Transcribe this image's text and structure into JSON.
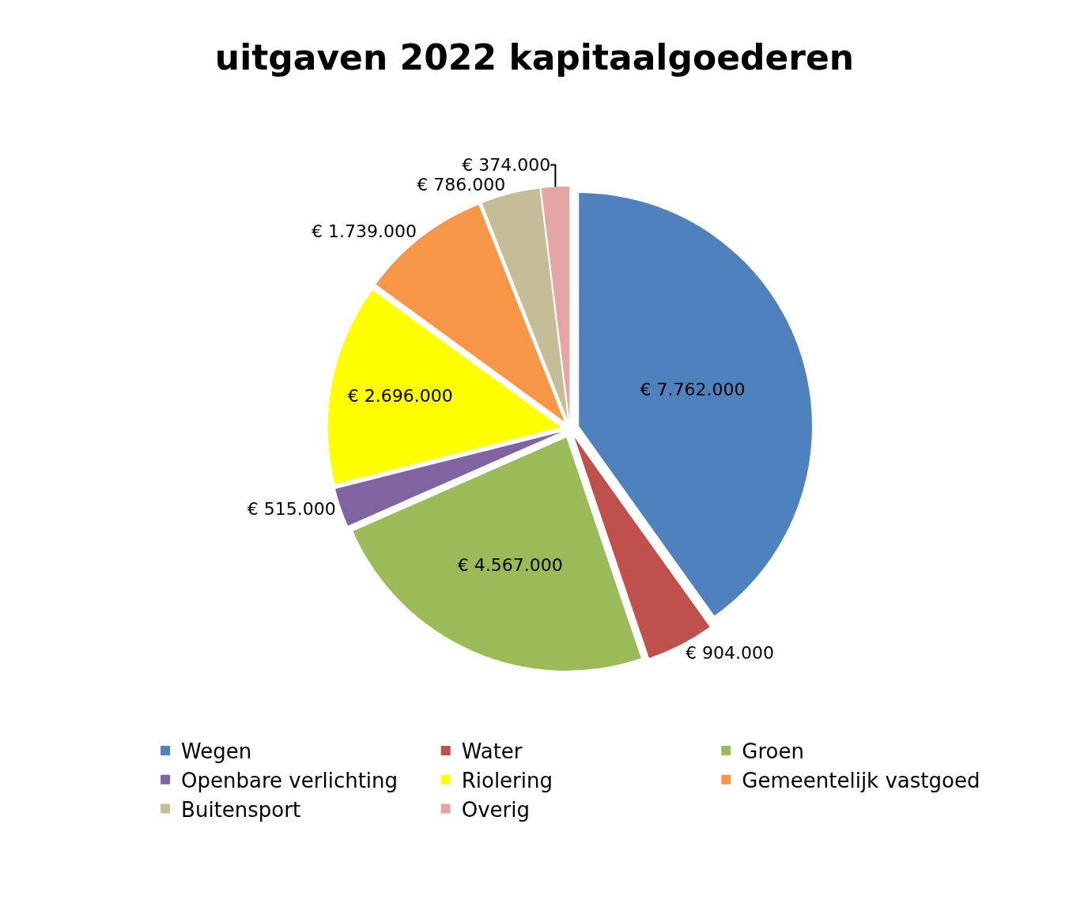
{
  "chart_data": {
    "type": "pie",
    "title": "uitgaven 2022 kapitaalgoederen",
    "categories": [
      "Wegen",
      "Water",
      "Groen",
      "Openbare verlichting",
      "Riolering",
      "Gemeentelijk vastgoed",
      "Buitensport",
      "Overig"
    ],
    "values": [
      7762000,
      904000,
      4567000,
      515000,
      2696000,
      1739000,
      786000,
      374000
    ],
    "value_labels": [
      "€ 7.762.000",
      "€ 904.000",
      "€ 4.567.000",
      "€ 515.000",
      "€ 2.696.000",
      "€ 1.739.000",
      "€ 786.000",
      "€ 374.000"
    ],
    "colors": [
      "#4f81bd",
      "#c0504d",
      "#9bbb59",
      "#8064a2",
      "#ffff00",
      "#f79646",
      "#c4bd97",
      "#e6a5a5"
    ],
    "legend": "bottom"
  }
}
